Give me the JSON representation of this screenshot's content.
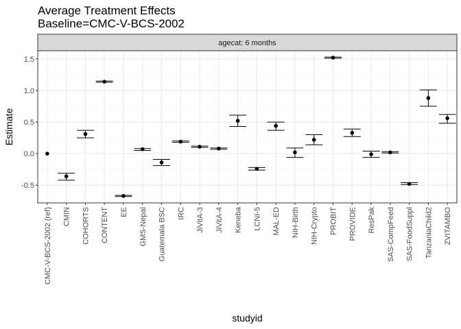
{
  "chart_data": {
    "type": "scatter",
    "title": "Average Treatment Effects",
    "subtitle": "Baseline=CMC-V-BCS-2002",
    "facet_label": "agecat: 6 months",
    "xlabel": "studyid",
    "ylabel": "Estimate",
    "ylim": [
      -0.78,
      1.63
    ],
    "yticks": [
      -0.5,
      0.0,
      0.5,
      1.0,
      1.5
    ],
    "ytick_labels": [
      "-0.5",
      "0.0",
      "0.5",
      "1.0",
      "1.5"
    ],
    "grid": true,
    "legend": "none",
    "categories": [
      "CMC-V-BCS-2002 (ref)",
      "CMIN",
      "COHORTS",
      "CONTENT",
      "EE",
      "GMS-Nepal",
      "Guatemala BSC",
      "IRC",
      "JiVitA-3",
      "JiVitA-4",
      "Keneba",
      "LCNI-5",
      "MAL-ED",
      "NIH-Birth",
      "NIH-Crypto",
      "PROBIT",
      "PROVIDE",
      "ResPak",
      "SAS-CompFeed",
      "SAS-FoodSuppl",
      "TanzaniaChild2",
      "ZVITAMBO"
    ],
    "series": [
      {
        "estimate": [
          0.0,
          -0.36,
          0.31,
          1.14,
          -0.67,
          0.07,
          -0.14,
          0.19,
          0.11,
          0.08,
          0.52,
          -0.24,
          0.44,
          0.02,
          0.22,
          1.52,
          0.33,
          -0.01,
          0.02,
          -0.48,
          0.88,
          0.56
        ],
        "lower": [
          null,
          -0.42,
          0.25,
          1.13,
          -0.68,
          0.05,
          -0.19,
          0.18,
          0.1,
          0.07,
          0.43,
          -0.26,
          0.37,
          -0.06,
          0.14,
          1.51,
          0.27,
          -0.06,
          0.01,
          -0.49,
          0.75,
          0.48
        ],
        "upper": [
          null,
          -0.31,
          0.37,
          1.15,
          -0.66,
          0.08,
          -0.09,
          0.2,
          0.12,
          0.09,
          0.61,
          -0.22,
          0.5,
          0.09,
          0.3,
          1.53,
          0.39,
          0.04,
          0.03,
          -0.46,
          1.01,
          0.62
        ]
      }
    ]
  },
  "colors": {
    "panel_border": "#333333",
    "grid_major": "#ebebeb",
    "grid_minor": "#f5f5f5",
    "strip_fill": "#d9d9d9",
    "point": "#000000",
    "tick_text": "#4d4d4d"
  }
}
